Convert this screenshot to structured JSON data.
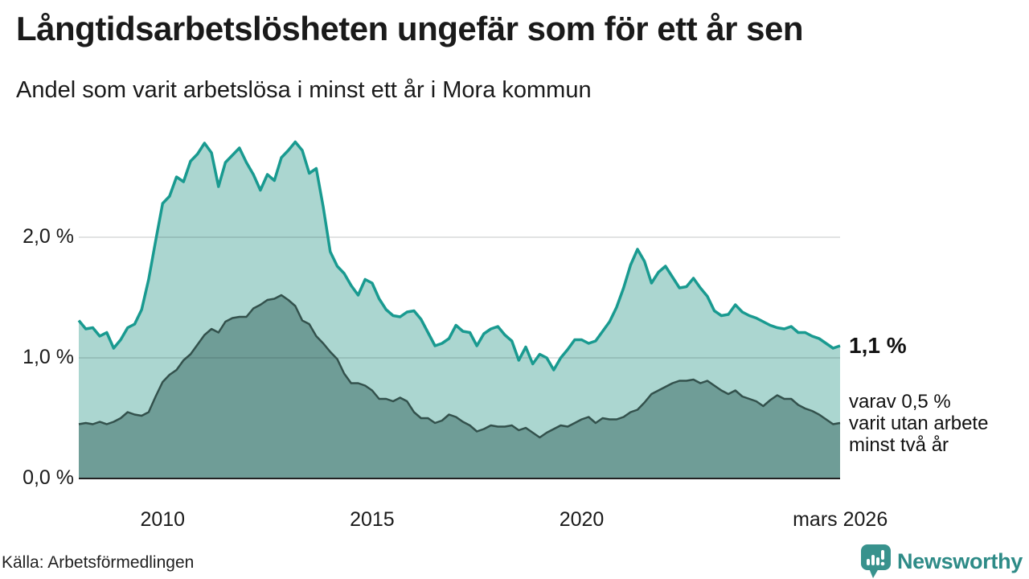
{
  "header": {
    "title": "Långtidsarbetslösheten ungefär som för ett år sen",
    "subtitle": "Andel som varit arbetslösa i minst ett år i Mora kommun"
  },
  "annotations": {
    "end_value": "1,1 %",
    "end_detail": "varav 0,5 %\nvarit utan arbete\nminst två år"
  },
  "footer": {
    "source": "Källa: Arbetsförmedlingen",
    "brand": "Newsworthy"
  },
  "colors": {
    "line_1yr": "#199a90",
    "fill_1yr": "#abd6d0",
    "line_2yr": "#33514c",
    "fill_2yr": "#6f9d97",
    "grid": "rgba(20,40,40,0.13)",
    "axis": "#222222",
    "text": "#1a1a1a",
    "brand_teal": "#2e8b87"
  },
  "chart_data": {
    "type": "area",
    "title": "Långtidsarbetslösheten ungefär som för ett år sen",
    "subtitle": "Andel som varit arbetslösa i minst ett år i Mora kommun",
    "xlabel": "",
    "ylabel": "",
    "grid": true,
    "legend": "none",
    "x_axis": {
      "start_year": 2008.0,
      "end_year": 2026.17,
      "ticks": [
        {
          "label": "2010",
          "year": 2010
        },
        {
          "label": "2015",
          "year": 2015
        },
        {
          "label": "2020",
          "year": 2020
        },
        {
          "label": "mars 2026",
          "year": 2026.17
        }
      ]
    },
    "y_axis": {
      "range": [
        0,
        2.9
      ],
      "unit": "%",
      "ticks": [
        {
          "label": "0,0 %",
          "value": 0
        },
        {
          "label": "1,0 %",
          "value": 1
        },
        {
          "label": "2,0 %",
          "value": 2
        }
      ],
      "gridline_values": [
        1,
        2
      ]
    },
    "points_per_year": 6,
    "series": [
      {
        "name": "Andel arbetslösa minst ett år",
        "end_label": "1,1 %",
        "end_value": 1.1,
        "values": [
          1.31,
          1.24,
          1.25,
          1.18,
          1.21,
          1.08,
          1.15,
          1.25,
          1.28,
          1.4,
          1.65,
          1.97,
          2.28,
          2.34,
          2.5,
          2.46,
          2.63,
          2.69,
          2.78,
          2.7,
          2.42,
          2.62,
          2.68,
          2.74,
          2.62,
          2.52,
          2.39,
          2.52,
          2.47,
          2.66,
          2.72,
          2.79,
          2.72,
          2.53,
          2.57,
          2.25,
          1.88,
          1.76,
          1.7,
          1.6,
          1.52,
          1.65,
          1.62,
          1.49,
          1.4,
          1.35,
          1.34,
          1.38,
          1.39,
          1.32,
          1.21,
          1.1,
          1.12,
          1.16,
          1.27,
          1.22,
          1.21,
          1.1,
          1.2,
          1.24,
          1.26,
          1.19,
          1.14,
          0.98,
          1.09,
          0.95,
          1.03,
          1.0,
          0.9,
          1.0,
          1.07,
          1.15,
          1.15,
          1.12,
          1.14,
          1.22,
          1.3,
          1.42,
          1.58,
          1.77,
          1.9,
          1.8,
          1.62,
          1.71,
          1.76,
          1.67,
          1.58,
          1.59,
          1.66,
          1.58,
          1.51,
          1.39,
          1.35,
          1.36,
          1.44,
          1.38,
          1.35,
          1.33,
          1.3,
          1.27,
          1.25,
          1.24,
          1.26,
          1.21,
          1.21,
          1.18,
          1.16,
          1.12,
          1.08,
          1.1
        ]
      },
      {
        "name": "Andel arbetslösa minst två år",
        "end_label": "varav 0,5 %",
        "end_value": 0.5,
        "values": [
          0.45,
          0.46,
          0.45,
          0.47,
          0.45,
          0.47,
          0.5,
          0.55,
          0.53,
          0.52,
          0.55,
          0.68,
          0.8,
          0.86,
          0.9,
          0.98,
          1.03,
          1.11,
          1.19,
          1.24,
          1.21,
          1.3,
          1.33,
          1.34,
          1.34,
          1.41,
          1.44,
          1.48,
          1.49,
          1.52,
          1.48,
          1.43,
          1.31,
          1.28,
          1.18,
          1.12,
          1.05,
          0.99,
          0.87,
          0.79,
          0.79,
          0.77,
          0.73,
          0.66,
          0.66,
          0.64,
          0.67,
          0.64,
          0.55,
          0.5,
          0.5,
          0.46,
          0.48,
          0.53,
          0.51,
          0.47,
          0.44,
          0.39,
          0.41,
          0.44,
          0.43,
          0.43,
          0.44,
          0.4,
          0.42,
          0.38,
          0.34,
          0.38,
          0.41,
          0.44,
          0.43,
          0.46,
          0.49,
          0.51,
          0.46,
          0.5,
          0.49,
          0.49,
          0.51,
          0.55,
          0.57,
          0.63,
          0.7,
          0.73,
          0.76,
          0.79,
          0.81,
          0.81,
          0.82,
          0.79,
          0.81,
          0.77,
          0.73,
          0.7,
          0.73,
          0.68,
          0.66,
          0.64,
          0.6,
          0.65,
          0.69,
          0.66,
          0.66,
          0.61,
          0.58,
          0.56,
          0.53,
          0.49,
          0.45,
          0.46
        ]
      }
    ]
  }
}
